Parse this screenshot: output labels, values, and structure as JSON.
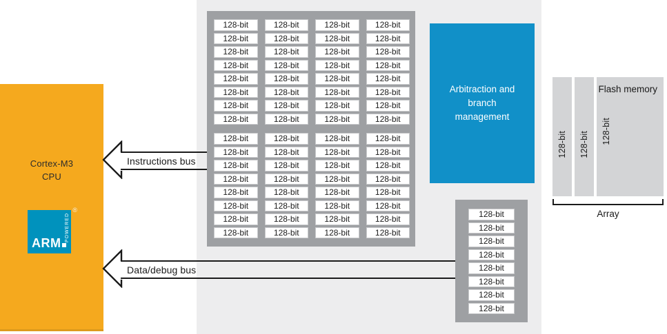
{
  "diagram": {
    "cpu": {
      "name_line1": "Cortex-M3",
      "name_line2": "CPU",
      "color": "#F5A91E",
      "logo": {
        "brand": "ARM",
        "tagline": "POWERED",
        "registered": "®",
        "color": "#0092BD"
      }
    },
    "buses": {
      "instructions": {
        "label": "Instructions bus"
      },
      "data_debug": {
        "label": "Data/debug bus"
      }
    },
    "prefetch_grid": {
      "cell_label": "128-bit",
      "columns": 4,
      "rows_per_group": 8,
      "cells_per_group": 32,
      "groups": 2,
      "container_color": "#9EA0A3"
    },
    "data_queue": {
      "cell_label": "128-bit",
      "rows": 8,
      "container_color": "#9EA0A3"
    },
    "arbitration": {
      "label": "Arbitraction and branch management",
      "color": "#1190C8"
    },
    "flash": {
      "title": "Flash memory",
      "bank_label": "128-bit",
      "banks": 3,
      "array_label": "Array",
      "color": "#D3D4D6"
    }
  }
}
